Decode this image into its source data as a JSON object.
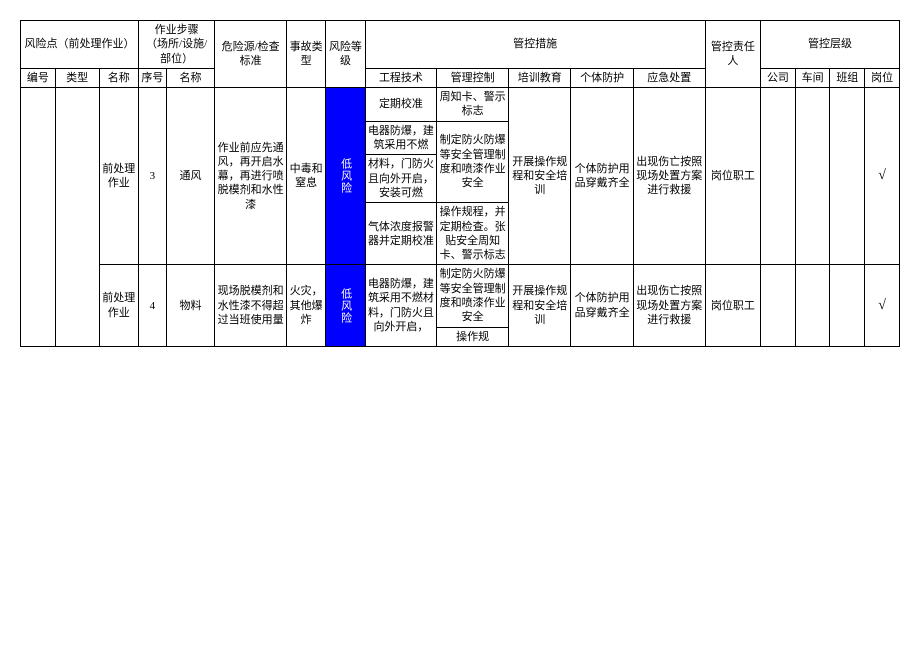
{
  "header": {
    "risk_point": "风险点（前处理作业）",
    "work_step": "作业步骤\n（场所/设施/部位）",
    "hazard_src": "危险源/检查标准",
    "accident_type": "事故类型",
    "risk_level": "风险等级",
    "control_measures": "管控措施",
    "responsible": "管控责任人",
    "control_level": "管控层级",
    "sub": {
      "id": "编号",
      "type": "类型",
      "name": "名称",
      "seq": "序号",
      "step_name": "名称",
      "engineering": "工程技术",
      "mgmt": "管理控制",
      "training": "培训教育",
      "ppe": "个体防护",
      "emergency": "应急处置",
      "company": "公司",
      "workshop": "车间",
      "team": "班组",
      "post": "岗位"
    }
  },
  "rows": [
    {
      "type": "前处理作业",
      "seq": "3",
      "step_name": "通风",
      "hazard": "作业前应先通风，再开启水幕，再进行喷脱模剂和水性漆",
      "accident": "中毒和窒息",
      "risk_level": "低风险",
      "eng": [
        "定期校准",
        "电器防爆，建筑采用不燃",
        "材料，门防火且向外开启，安装可燃",
        "气体浓度报警器并定期校准"
      ],
      "mgmt": [
        "周知卡、警示标志",
        "制定防火防爆等安全管理制度和喷漆作业安全",
        "操作规程，并定期检查。张贴安全周知卡、警示标志"
      ],
      "training": "开展操作规程和安全培训",
      "ppe": "个体防护用品穿戴齐全",
      "emergency": "出现伤亡按照现场处置方案进行救援",
      "responsible": "岗位职工",
      "level_check": "post"
    },
    {
      "type": "前处理作业",
      "seq": "4",
      "step_name": "物料",
      "hazard": "现场脱模剂和水性漆不得超过当班使用量",
      "accident": "火灾，其他爆炸",
      "risk_level": "低风险",
      "eng": [
        "电器防爆，建筑采用不燃材料，门防火且向外开启，"
      ],
      "mgmt": [
        "制定防火防爆等安全管理制度和喷漆作业安全",
        "操作规"
      ],
      "training": "开展操作规程和安全培训",
      "ppe": "个体防护用品穿戴齐全",
      "emergency": "出现伤亡按照现场处置方案进行救援",
      "responsible": "岗位职工",
      "level_check": "post"
    }
  ],
  "colors": {
    "risk_low_bg": "#0000ff",
    "risk_low_fg": "#ffffff",
    "border": "#000000",
    "background": "#ffffff"
  }
}
